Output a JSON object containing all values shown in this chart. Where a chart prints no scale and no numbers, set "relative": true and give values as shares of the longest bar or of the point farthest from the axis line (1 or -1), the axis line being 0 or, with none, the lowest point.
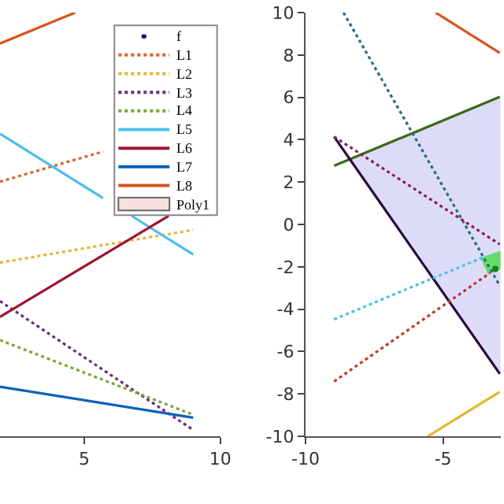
{
  "chart_data": [
    {
      "type": "line",
      "relative": true,
      "xlim": [
        1.9,
        10
      ],
      "xticks": [
        5,
        10
      ],
      "tick_labels": "x",
      "legend": "top right",
      "series": [
        {
          "name": "f",
          "type": "scatter",
          "marker": "circle",
          "color": "#000080"
        },
        {
          "name": "L1",
          "color": "#d9622b",
          "line_style": "dotted",
          "x": [
            1.9,
            5.69
          ],
          "values": [
            0.601,
            0.672
          ]
        },
        {
          "name": "L2",
          "color": "#e8b430",
          "line_style": "dotted",
          "x": [
            1.9,
            9
          ],
          "values": [
            0.41,
            0.487
          ]
        },
        {
          "name": "L3",
          "color": "#6a2c7a",
          "line_style": "dotted",
          "x": [
            1.9,
            9
          ],
          "values": [
            0.319,
            0.015
          ]
        },
        {
          "name": "L4",
          "color": "#78a832",
          "line_style": "dotted",
          "x": [
            1.9,
            9
          ],
          "values": [
            0.227,
            0.051
          ]
        },
        {
          "name": "L5",
          "color": "#4dbeee",
          "line_style": "solid",
          "x": [
            1.9,
            5.69,
            6.2,
            6.74,
            9
          ],
          "values": [
            0.714,
            0.562,
            null,
            0.52,
            0.429
          ]
        },
        {
          "name": "L6",
          "color": "#a2142f",
          "line_style": "solid",
          "x": [
            1.9,
            8.1
          ],
          "values": [
            0.282,
            0.52
          ]
        },
        {
          "name": "L7",
          "color": "#0a62b8",
          "line_style": "solid",
          "x": [
            1.9,
            9
          ],
          "values": [
            0.117,
            0.044
          ]
        },
        {
          "name": "L8",
          "color": "#d95319",
          "line_style": "solid",
          "x": [
            1.9,
            4.66
          ],
          "values": [
            0.927,
            1.0
          ]
        },
        {
          "name": "Poly1",
          "type": "area",
          "color": "#f8dede"
        }
      ]
    },
    {
      "type": "line",
      "xlim": [
        -10,
        -2.9
      ],
      "xticks": [
        -10,
        -5
      ],
      "ylim": [
        -10,
        10
      ],
      "yticks": [
        -10,
        -8,
        -6,
        -4,
        -2,
        0,
        2,
        4,
        6,
        8,
        10
      ],
      "series": [
        {
          "type": "area",
          "color": "#dcdcf8",
          "x": [
            -8.4,
            -2.94,
            -2.94,
            -8.4
          ],
          "values": [
            3.05,
            6.02,
            -7.05,
            3.05
          ]
        },
        {
          "type": "area",
          "color": "#66dd66",
          "x": [
            -3.6,
            -2.94,
            -2.94,
            -3.35,
            -3.6
          ],
          "values": [
            -1.6,
            -1.3,
            -2.1,
            -2.3,
            -1.6
          ]
        },
        {
          "color": "#d95319",
          "line_style": "solid",
          "x": [
            -5.27,
            -2.94
          ],
          "values": [
            10,
            8.1
          ]
        },
        {
          "color": "#e8b430",
          "line_style": "solid",
          "x": [
            -5.55,
            -2.94
          ],
          "values": [
            -10,
            -7.9
          ]
        },
        {
          "color": "#3a6a1a",
          "line_style": "solid",
          "x": [
            -8.96,
            -2.94
          ],
          "values": [
            2.77,
            6.02
          ]
        },
        {
          "color": "#2a0a3a",
          "line_style": "solid",
          "x": [
            -8.96,
            -2.94
          ],
          "values": [
            4.14,
            -7.05
          ]
        },
        {
          "color": "#2a6a8a",
          "line_style": "dotted",
          "x": [
            -8.62,
            -2.94
          ],
          "values": [
            10,
            -2.89
          ]
        },
        {
          "color": "#8b2252",
          "line_style": "dotted",
          "x": [
            -8.96,
            -2.94
          ],
          "values": [
            4.14,
            -0.94
          ]
        },
        {
          "color": "#4dbeee",
          "line_style": "dotted",
          "x": [
            -8.96,
            -3.54
          ],
          "values": [
            -4.48,
            -1.55
          ]
        },
        {
          "color": "#c0392b",
          "line_style": "dotted",
          "x": [
            -8.96,
            -3.28
          ],
          "values": [
            -7.41,
            -2.28
          ]
        },
        {
          "type": "scatter",
          "marker": "circle",
          "color": "#1a7a1a",
          "x": [
            -3.1
          ],
          "values": [
            -2.1
          ]
        }
      ]
    }
  ]
}
